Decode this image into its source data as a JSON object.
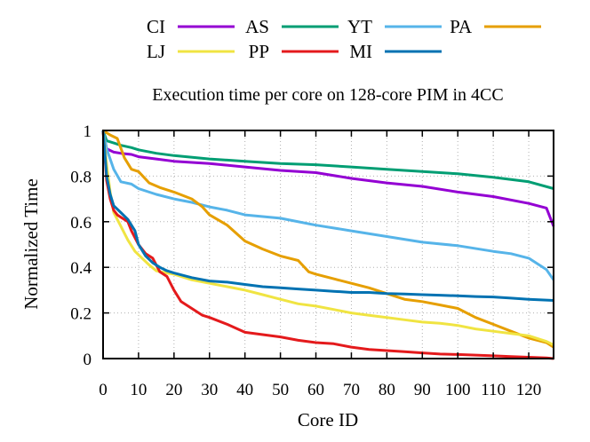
{
  "chart_data": {
    "type": "line",
    "title": "Execution time per core on 128-core PIM in 4CC",
    "xlabel": "Core ID",
    "ylabel": "Normalized Time",
    "xlim": [
      0,
      127
    ],
    "ylim": [
      0,
      1
    ],
    "xticks": [
      "0",
      "10",
      "20",
      "30",
      "40",
      "50",
      "60",
      "70",
      "80",
      "90",
      "100",
      "110",
      "120"
    ],
    "yticks": [
      "0",
      "0.2",
      "0.4",
      "0.6",
      "0.8",
      "1"
    ],
    "grid": true,
    "legend_position": "top, outside plot area",
    "series": [
      {
        "name": "CI",
        "color": "#9400d3",
        "points": [
          [
            0,
            1.0
          ],
          [
            1,
            0.92
          ],
          [
            3,
            0.905
          ],
          [
            5,
            0.9
          ],
          [
            8,
            0.895
          ],
          [
            10,
            0.885
          ],
          [
            15,
            0.875
          ],
          [
            20,
            0.865
          ],
          [
            30,
            0.855
          ],
          [
            40,
            0.84
          ],
          [
            50,
            0.825
          ],
          [
            60,
            0.815
          ],
          [
            70,
            0.79
          ],
          [
            80,
            0.77
          ],
          [
            90,
            0.755
          ],
          [
            100,
            0.73
          ],
          [
            110,
            0.71
          ],
          [
            120,
            0.68
          ],
          [
            125,
            0.66
          ],
          [
            127,
            0.58
          ]
        ]
      },
      {
        "name": "AS",
        "color": "#009e73",
        "points": [
          [
            0,
            1.0
          ],
          [
            1,
            0.955
          ],
          [
            3,
            0.945
          ],
          [
            5,
            0.935
          ],
          [
            8,
            0.925
          ],
          [
            10,
            0.915
          ],
          [
            15,
            0.9
          ],
          [
            20,
            0.89
          ],
          [
            30,
            0.875
          ],
          [
            40,
            0.865
          ],
          [
            50,
            0.855
          ],
          [
            60,
            0.85
          ],
          [
            70,
            0.84
          ],
          [
            80,
            0.83
          ],
          [
            90,
            0.82
          ],
          [
            100,
            0.81
          ],
          [
            110,
            0.795
          ],
          [
            120,
            0.775
          ],
          [
            127,
            0.745
          ]
        ]
      },
      {
        "name": "YT",
        "color": "#56b4e9",
        "points": [
          [
            0,
            1.0
          ],
          [
            1,
            0.92
          ],
          [
            3,
            0.83
          ],
          [
            5,
            0.775
          ],
          [
            8,
            0.765
          ],
          [
            10,
            0.745
          ],
          [
            15,
            0.72
          ],
          [
            20,
            0.7
          ],
          [
            25,
            0.685
          ],
          [
            30,
            0.665
          ],
          [
            35,
            0.65
          ],
          [
            40,
            0.63
          ],
          [
            50,
            0.615
          ],
          [
            60,
            0.585
          ],
          [
            70,
            0.56
          ],
          [
            80,
            0.535
          ],
          [
            90,
            0.51
          ],
          [
            100,
            0.495
          ],
          [
            110,
            0.47
          ],
          [
            115,
            0.46
          ],
          [
            120,
            0.44
          ],
          [
            125,
            0.39
          ],
          [
            127,
            0.345
          ]
        ]
      },
      {
        "name": "PA",
        "color": "#e69f00",
        "points": [
          [
            0,
            1.0
          ],
          [
            2,
            0.98
          ],
          [
            4,
            0.965
          ],
          [
            6,
            0.88
          ],
          [
            8,
            0.83
          ],
          [
            10,
            0.82
          ],
          [
            13,
            0.77
          ],
          [
            16,
            0.75
          ],
          [
            20,
            0.73
          ],
          [
            25,
            0.7
          ],
          [
            28,
            0.665
          ],
          [
            30,
            0.63
          ],
          [
            35,
            0.585
          ],
          [
            40,
            0.515
          ],
          [
            45,
            0.48
          ],
          [
            50,
            0.45
          ],
          [
            55,
            0.43
          ],
          [
            58,
            0.38
          ],
          [
            60,
            0.37
          ],
          [
            65,
            0.35
          ],
          [
            70,
            0.33
          ],
          [
            75,
            0.31
          ],
          [
            80,
            0.285
          ],
          [
            85,
            0.26
          ],
          [
            90,
            0.25
          ],
          [
            95,
            0.235
          ],
          [
            100,
            0.22
          ],
          [
            105,
            0.18
          ],
          [
            110,
            0.15
          ],
          [
            115,
            0.12
          ],
          [
            120,
            0.09
          ],
          [
            125,
            0.07
          ],
          [
            127,
            0.05
          ]
        ]
      },
      {
        "name": "LJ",
        "color": "#f0e442",
        "points": [
          [
            0,
            1.0
          ],
          [
            1,
            0.85
          ],
          [
            2,
            0.73
          ],
          [
            3,
            0.64
          ],
          [
            5,
            0.58
          ],
          [
            7,
            0.52
          ],
          [
            9,
            0.47
          ],
          [
            11,
            0.44
          ],
          [
            13,
            0.41
          ],
          [
            15,
            0.385
          ],
          [
            18,
            0.375
          ],
          [
            20,
            0.37
          ],
          [
            25,
            0.345
          ],
          [
            30,
            0.33
          ],
          [
            35,
            0.315
          ],
          [
            40,
            0.3
          ],
          [
            45,
            0.28
          ],
          [
            50,
            0.26
          ],
          [
            55,
            0.24
          ],
          [
            60,
            0.23
          ],
          [
            65,
            0.215
          ],
          [
            70,
            0.2
          ],
          [
            75,
            0.19
          ],
          [
            80,
            0.18
          ],
          [
            85,
            0.17
          ],
          [
            90,
            0.16
          ],
          [
            95,
            0.155
          ],
          [
            100,
            0.145
          ],
          [
            105,
            0.13
          ],
          [
            110,
            0.12
          ],
          [
            115,
            0.11
          ],
          [
            120,
            0.1
          ],
          [
            125,
            0.075
          ],
          [
            127,
            0.06
          ]
        ]
      },
      {
        "name": "PP",
        "color": "#e41a1c",
        "points": [
          [
            0,
            1.0
          ],
          [
            1,
            0.78
          ],
          [
            2,
            0.7
          ],
          [
            3,
            0.65
          ],
          [
            4,
            0.63
          ],
          [
            5,
            0.62
          ],
          [
            7,
            0.6
          ],
          [
            8,
            0.56
          ],
          [
            10,
            0.5
          ],
          [
            12,
            0.46
          ],
          [
            14,
            0.44
          ],
          [
            16,
            0.38
          ],
          [
            18,
            0.36
          ],
          [
            20,
            0.3
          ],
          [
            22,
            0.25
          ],
          [
            25,
            0.22
          ],
          [
            28,
            0.19
          ],
          [
            30,
            0.18
          ],
          [
            35,
            0.15
          ],
          [
            40,
            0.115
          ],
          [
            45,
            0.105
          ],
          [
            50,
            0.095
          ],
          [
            55,
            0.08
          ],
          [
            60,
            0.07
          ],
          [
            65,
            0.065
          ],
          [
            70,
            0.05
          ],
          [
            75,
            0.04
          ],
          [
            80,
            0.035
          ],
          [
            85,
            0.03
          ],
          [
            90,
            0.025
          ],
          [
            95,
            0.02
          ],
          [
            100,
            0.018
          ],
          [
            105,
            0.015
          ],
          [
            110,
            0.012
          ],
          [
            115,
            0.009
          ],
          [
            120,
            0.006
          ],
          [
            125,
            0.003
          ],
          [
            127,
            0.0
          ]
        ]
      },
      {
        "name": "MI",
        "color": "#0072b2",
        "points": [
          [
            0,
            1.0
          ],
          [
            1,
            0.8
          ],
          [
            2,
            0.72
          ],
          [
            3,
            0.67
          ],
          [
            5,
            0.64
          ],
          [
            7,
            0.61
          ],
          [
            9,
            0.56
          ],
          [
            10,
            0.5
          ],
          [
            12,
            0.45
          ],
          [
            14,
            0.42
          ],
          [
            16,
            0.4
          ],
          [
            18,
            0.385
          ],
          [
            20,
            0.375
          ],
          [
            25,
            0.355
          ],
          [
            30,
            0.34
          ],
          [
            35,
            0.335
          ],
          [
            40,
            0.325
          ],
          [
            45,
            0.315
          ],
          [
            50,
            0.31
          ],
          [
            55,
            0.305
          ],
          [
            60,
            0.3
          ],
          [
            65,
            0.295
          ],
          [
            70,
            0.29
          ],
          [
            75,
            0.29
          ],
          [
            80,
            0.285
          ],
          [
            85,
            0.283
          ],
          [
            90,
            0.28
          ],
          [
            95,
            0.278
          ],
          [
            100,
            0.275
          ],
          [
            105,
            0.272
          ],
          [
            110,
            0.27
          ],
          [
            115,
            0.265
          ],
          [
            120,
            0.26
          ],
          [
            127,
            0.255
          ]
        ]
      }
    ]
  }
}
